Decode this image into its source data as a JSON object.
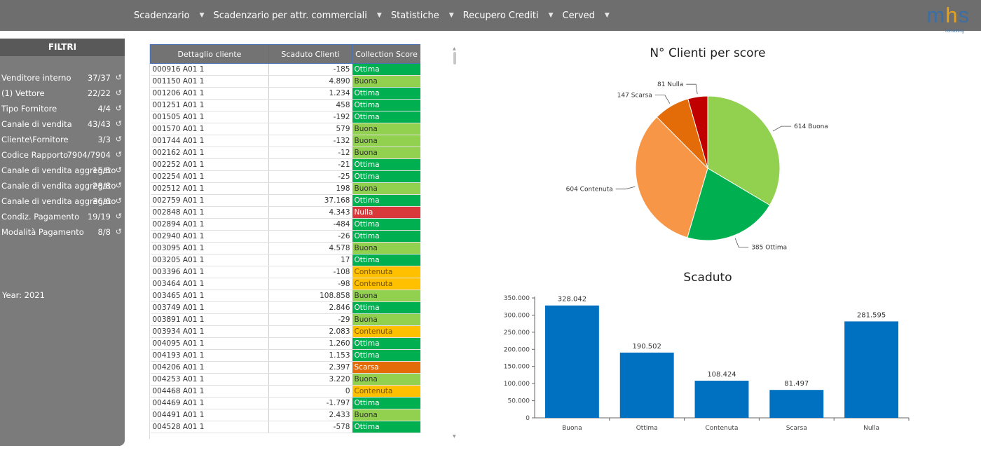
{
  "menu": [
    {
      "label": "Scadenzario"
    },
    {
      "label": "Scadenzario per attr. commerciali"
    },
    {
      "label": "Statistiche"
    },
    {
      "label": "Recupero Crediti"
    },
    {
      "label": "Cerved"
    }
  ],
  "menu_caret": "▼",
  "logo": {
    "m": "m",
    "h": "h",
    "s": "s",
    "sub": "consulting"
  },
  "sidebar": {
    "title": "FILTRI",
    "filters": [
      {
        "label": "Venditore interno",
        "value": "37/37"
      },
      {
        "label": "(1) Vettore",
        "value": "22/22"
      },
      {
        "label": "Tipo Fornitore",
        "value": "4/4"
      },
      {
        "label": "Canale di vendita",
        "value": "43/43"
      },
      {
        "label": "Cliente\\Fornitore",
        "value": "3/3"
      },
      {
        "label": "Codice Rapporto",
        "value": "7904/7904"
      },
      {
        "label": "Canale di vendita aggregato",
        "value": "15/5"
      },
      {
        "label": "Canale di vendita aggregato",
        "value": "28/8"
      },
      {
        "label": "Canale di vendita aggregato",
        "value": "36/6"
      },
      {
        "label": "Condiz. Pagamento",
        "value": "19/19"
      },
      {
        "label": "Modalità Pagamento",
        "value": "8/8"
      }
    ],
    "year": "Year: 2021"
  },
  "table": {
    "headers": [
      "Dettaglio cliente",
      "Scaduto Clienti",
      "Collection Score"
    ],
    "rows": [
      [
        "000916 A01 1",
        "-185",
        "Ottima"
      ],
      [
        "001150 A01 1",
        "4.890",
        "Buona"
      ],
      [
        "001206 A01 1",
        "1.234",
        "Ottima"
      ],
      [
        "001251 A01 1",
        "458",
        "Ottima"
      ],
      [
        "001505 A01 1",
        "-192",
        "Ottima"
      ],
      [
        "001570 A01 1",
        "579",
        "Buona"
      ],
      [
        "001744 A01 1",
        "-132",
        "Buona"
      ],
      [
        "002162 A01 1",
        "-12",
        "Buona"
      ],
      [
        "002252 A01 1",
        "-21",
        "Ottima"
      ],
      [
        "002254 A01 1",
        "-25",
        "Ottima"
      ],
      [
        "002512 A01 1",
        "198",
        "Buona"
      ],
      [
        "002759 A01 1",
        "37.168",
        "Ottima"
      ],
      [
        "002848 A01 1",
        "4.343",
        "Nulla"
      ],
      [
        "002894 A01 1",
        "-484",
        "Ottima"
      ],
      [
        "002940 A01 1",
        "-26",
        "Ottima"
      ],
      [
        "003095 A01 1",
        "4.578",
        "Buona"
      ],
      [
        "003205 A01 1",
        "17",
        "Ottima"
      ],
      [
        "003396 A01 1",
        "-108",
        "Contenuta"
      ],
      [
        "003464 A01 1",
        "-98",
        "Contenuta"
      ],
      [
        "003465 A01 1",
        "108.858",
        "Buona"
      ],
      [
        "003749 A01 1",
        "2.846",
        "Ottima"
      ],
      [
        "003891 A01 1",
        "-29",
        "Buona"
      ],
      [
        "003934 A01 1",
        "2.083",
        "Contenuta"
      ],
      [
        "004095 A01 1",
        "1.260",
        "Ottima"
      ],
      [
        "004193 A01 1",
        "1.153",
        "Ottima"
      ],
      [
        "004206 A01 1",
        "2.397",
        "Scarsa"
      ],
      [
        "004253 A01 1",
        "3.220",
        "Buona"
      ],
      [
        "004468 A01 1",
        "0",
        "Contenuta"
      ],
      [
        "004469 A01 1",
        "-1.797",
        "Ottima"
      ],
      [
        "004491 A01 1",
        "2.433",
        "Buona"
      ],
      [
        "004528 A01 1",
        "-578",
        "Ottima"
      ]
    ]
  },
  "score_colors": {
    "Ottima": "#00b050",
    "Buona": "#92d050",
    "Contenuta": "#ffc000",
    "Scarsa": "#e36c09",
    "Nulla": "#d9393a"
  },
  "score_text_colors": {
    "Ottima": "#ffffff",
    "Buona": "#333333",
    "Contenuta": "#7a5800",
    "Scarsa": "#ffffff",
    "Nulla": "#ffffff"
  },
  "chart_data": [
    {
      "type": "pie",
      "title": "N° Clienti per score",
      "slices": [
        {
          "label": "Buona",
          "value": 614,
          "color": "#92d050"
        },
        {
          "label": "Ottima",
          "value": 385,
          "color": "#00b050"
        },
        {
          "label": "Contenuta",
          "value": 604,
          "color": "#f79646"
        },
        {
          "label": "Scarsa",
          "value": 147,
          "color": "#e36c09"
        },
        {
          "label": "Nulla",
          "value": 81,
          "color": "#c00000"
        }
      ],
      "data_labels": [
        "614 Buona",
        "385 Ottima",
        "604 Contenuta",
        "147 Scarsa",
        "81 Nulla"
      ]
    },
    {
      "type": "bar",
      "title": "Scaduto",
      "categories": [
        "Buona",
        "Ottima",
        "Contenuta",
        "Scarsa",
        "Nulla"
      ],
      "values": [
        328042,
        190502,
        108424,
        81497,
        281595
      ],
      "value_labels": [
        "328.042",
        "190.502",
        "108.424",
        "81.497",
        "281.595"
      ],
      "ylim": [
        0,
        350000
      ],
      "yticks": [
        0,
        50000,
        100000,
        150000,
        200000,
        250000,
        300000,
        350000
      ],
      "ytick_labels": [
        "0",
        "50.000",
        "100.000",
        "150.000",
        "200.000",
        "250.000",
        "300.000",
        "350.000"
      ],
      "color": "#0070c0",
      "grid": false
    }
  ]
}
